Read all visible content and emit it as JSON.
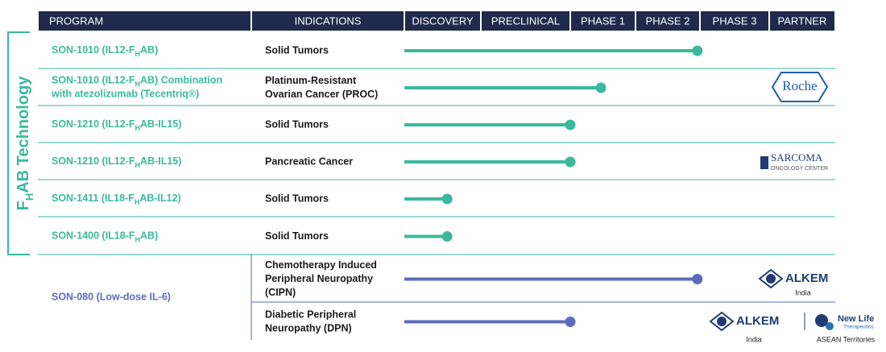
{
  "header": [
    "PROGRAM",
    "INDICATIONS",
    "DISCOVERY",
    "PRECLINICAL",
    "PHASE 1",
    "PHASE 2",
    "PHASE 3",
    "PARTNER"
  ],
  "group_label": [
    "F",
    "H",
    "AB Technology"
  ],
  "rows": [
    {
      "program": [
        "SON-1010 (IL12-F",
        "H",
        "AB)"
      ],
      "indication": [
        "Solid Tumors"
      ],
      "progress": 3.96
    },
    {
      "program": [
        "SON-1010 (IL12-F",
        "H",
        "AB) Combination",
        "",
        "with atezolizumab (Tecentriq®)"
      ],
      "indication": [
        "Platinum-Resistant",
        "Ovarian Cancer (PROC)"
      ],
      "progress": 2.47,
      "partner": [
        "Roche"
      ]
    },
    {
      "program": [
        "SON-1210 (IL12-F",
        "H",
        "AB-IL15)"
      ],
      "indication": [
        "Solid Tumors"
      ],
      "progress": 2.0
    },
    {
      "program": [
        "SON-1210 (IL12-F",
        "H",
        "AB-IL15)"
      ],
      "indication": [
        "Pancreatic Cancer"
      ],
      "progress": 2.0,
      "partner": [
        "SARCOMA",
        "ONCOLOGY CENTER"
      ]
    },
    {
      "program": [
        "SON-1411 (IL18-F",
        "H",
        "AB-IL12)"
      ],
      "indication": [
        "Solid Tumors"
      ],
      "progress": 0.56
    },
    {
      "program": [
        "SON-1400 (IL18-F",
        "H",
        "AB)"
      ],
      "indication": [
        "Solid Tumors"
      ],
      "progress": 0.56
    }
  ],
  "son080": {
    "program": "SON-080 (Low-dose IL-6)",
    "rows": [
      {
        "indication": [
          "Chemotherapy Induced",
          "Peripheral Neuropathy",
          "(CIPN)"
        ],
        "progress": 3.96,
        "partner": [
          "ALKEM"
        ],
        "region": [
          "India"
        ]
      },
      {
        "indication": [
          "Diabetic Peripheral",
          "Neuropathy (DPN)"
        ],
        "progress": 2.0,
        "partner": [
          "ALKEM",
          "New Life",
          "Therapeutics"
        ],
        "region": [
          "India",
          "ASEAN Territories"
        ]
      }
    ]
  },
  "colors": {
    "header": "#1f2a4d",
    "teal": "#3bb99c",
    "blue": "#5c6cbc"
  }
}
